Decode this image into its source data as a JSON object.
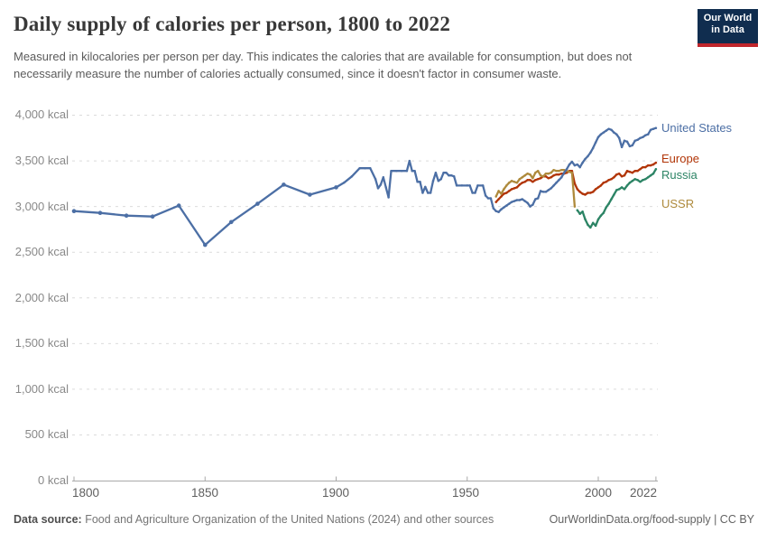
{
  "header": {
    "title": "Daily supply of calories per person, 1800 to 2022",
    "subtitle": "Measured in kilocalories per person per day. This indicates the calories that are available for consumption, but does not necessarily measure the number of calories actually consumed, since it doesn't factor in consumer waste.",
    "logo": {
      "line1": "Our World",
      "line2": "in Data",
      "bg_color": "#102D4F",
      "stripe_color": "#C0262C"
    }
  },
  "axis": {
    "y_labels": [
      "4,000 kcal",
      "3,500 kcal",
      "3,000 kcal",
      "2,500 kcal",
      "2,000 kcal",
      "1,500 kcal",
      "1,000 kcal",
      "500 kcal",
      "0 kcal"
    ],
    "x_labels": [
      "1800",
      "1850",
      "1900",
      "1950",
      "2000",
      "2022"
    ]
  },
  "footer": {
    "datasource_label": "Data source:",
    "datasource_text": " Food and Agriculture Organization of the United Nations (2024) and other sources",
    "link": "OurWorldinData.org/food-supply | CC BY"
  },
  "chart_data": {
    "type": "line",
    "title": "Daily supply of calories per person, 1800 to 2022",
    "unit": "kcal",
    "xlim": [
      1800,
      2022
    ],
    "ylim": [
      0,
      4000
    ],
    "x_ticks": [
      1800,
      1850,
      1900,
      1950,
      2000,
      2022
    ],
    "y_ticks": [
      0,
      500,
      1000,
      1500,
      2000,
      2500,
      3000,
      3500,
      4000
    ],
    "grid": "horizontal dashed",
    "legend_position": "right end-of-line labels",
    "colors": {
      "grid": "#DBDBDB",
      "axis": "#A9A9A9"
    },
    "series": [
      {
        "name": "Europe",
        "color": "#B13507",
        "points": [
          [
            1961,
            3050
          ],
          [
            1962,
            3080
          ],
          [
            1963,
            3110
          ],
          [
            1964,
            3140
          ],
          [
            1965,
            3150
          ],
          [
            1966,
            3170
          ],
          [
            1967,
            3190
          ],
          [
            1968,
            3200
          ],
          [
            1969,
            3210
          ],
          [
            1970,
            3240
          ],
          [
            1971,
            3260
          ],
          [
            1972,
            3270
          ],
          [
            1973,
            3290
          ],
          [
            1974,
            3290
          ],
          [
            1975,
            3270
          ],
          [
            1976,
            3290
          ],
          [
            1977,
            3300
          ],
          [
            1978,
            3310
          ],
          [
            1979,
            3330
          ],
          [
            1980,
            3330
          ],
          [
            1981,
            3310
          ],
          [
            1982,
            3320
          ],
          [
            1983,
            3340
          ],
          [
            1984,
            3350
          ],
          [
            1985,
            3350
          ],
          [
            1986,
            3360
          ],
          [
            1987,
            3360
          ],
          [
            1988,
            3370
          ],
          [
            1989,
            3390
          ],
          [
            1990,
            3390
          ],
          [
            1991,
            3250
          ],
          [
            1992,
            3190
          ],
          [
            1993,
            3160
          ],
          [
            1994,
            3140
          ],
          [
            1995,
            3130
          ],
          [
            1996,
            3150
          ],
          [
            1997,
            3150
          ],
          [
            1998,
            3160
          ],
          [
            1999,
            3190
          ],
          [
            2000,
            3210
          ],
          [
            2001,
            3230
          ],
          [
            2002,
            3260
          ],
          [
            2003,
            3270
          ],
          [
            2004,
            3290
          ],
          [
            2005,
            3300
          ],
          [
            2006,
            3320
          ],
          [
            2007,
            3350
          ],
          [
            2008,
            3360
          ],
          [
            2009,
            3330
          ],
          [
            2010,
            3340
          ],
          [
            2011,
            3390
          ],
          [
            2012,
            3380
          ],
          [
            2013,
            3370
          ],
          [
            2014,
            3390
          ],
          [
            2015,
            3390
          ],
          [
            2016,
            3410
          ],
          [
            2017,
            3430
          ],
          [
            2018,
            3430
          ],
          [
            2019,
            3450
          ],
          [
            2020,
            3450
          ],
          [
            2021,
            3460
          ],
          [
            2022,
            3480
          ]
        ]
      },
      {
        "name": "Russia",
        "color": "#2C8465",
        "points": [
          [
            1992,
            2960
          ],
          [
            1993,
            2920
          ],
          [
            1994,
            2945
          ],
          [
            1995,
            2860
          ],
          [
            1996,
            2800
          ],
          [
            1997,
            2770
          ],
          [
            1998,
            2820
          ],
          [
            1999,
            2790
          ],
          [
            2000,
            2860
          ],
          [
            2001,
            2900
          ],
          [
            2002,
            2930
          ],
          [
            2003,
            2990
          ],
          [
            2004,
            3030
          ],
          [
            2005,
            3080
          ],
          [
            2006,
            3130
          ],
          [
            2007,
            3180
          ],
          [
            2008,
            3190
          ],
          [
            2009,
            3210
          ],
          [
            2010,
            3190
          ],
          [
            2011,
            3230
          ],
          [
            2012,
            3260
          ],
          [
            2013,
            3280
          ],
          [
            2014,
            3300
          ],
          [
            2015,
            3290
          ],
          [
            2016,
            3270
          ],
          [
            2017,
            3290
          ],
          [
            2018,
            3300
          ],
          [
            2019,
            3320
          ],
          [
            2020,
            3340
          ],
          [
            2021,
            3360
          ],
          [
            2022,
            3410
          ]
        ]
      },
      {
        "name": "USSR",
        "color": "#AE8A3C",
        "points": [
          [
            1961,
            3110
          ],
          [
            1962,
            3170
          ],
          [
            1963,
            3140
          ],
          [
            1964,
            3190
          ],
          [
            1965,
            3230
          ],
          [
            1966,
            3260
          ],
          [
            1967,
            3280
          ],
          [
            1968,
            3270
          ],
          [
            1969,
            3260
          ],
          [
            1970,
            3300
          ],
          [
            1971,
            3320
          ],
          [
            1972,
            3340
          ],
          [
            1973,
            3360
          ],
          [
            1974,
            3350
          ],
          [
            1975,
            3310
          ],
          [
            1976,
            3370
          ],
          [
            1977,
            3390
          ],
          [
            1978,
            3340
          ],
          [
            1979,
            3330
          ],
          [
            1980,
            3360
          ],
          [
            1981,
            3360
          ],
          [
            1982,
            3370
          ],
          [
            1983,
            3400
          ],
          [
            1984,
            3390
          ],
          [
            1985,
            3390
          ],
          [
            1986,
            3400
          ],
          [
            1987,
            3400
          ],
          [
            1988,
            3390
          ],
          [
            1989,
            3380
          ],
          [
            1990,
            3370
          ],
          [
            1991,
            3000
          ]
        ]
      },
      {
        "name": "United States",
        "color": "#4C6FA5",
        "points": [
          [
            1800,
            2950
          ],
          [
            1810,
            2930
          ],
          [
            1820,
            2900
          ],
          [
            1830,
            2890
          ],
          [
            1840,
            3010
          ],
          [
            1850,
            2580
          ],
          [
            1860,
            2830
          ],
          [
            1870,
            3030
          ],
          [
            1880,
            3240
          ],
          [
            1890,
            3130
          ],
          [
            1900,
            3210
          ],
          [
            1903,
            3260
          ],
          [
            1906,
            3330
          ],
          [
            1909,
            3420
          ],
          [
            1911,
            3420
          ],
          [
            1913,
            3420
          ],
          [
            1915,
            3300
          ],
          [
            1916,
            3200
          ],
          [
            1917,
            3240
          ],
          [
            1918,
            3320
          ],
          [
            1919,
            3210
          ],
          [
            1920,
            3100
          ],
          [
            1921,
            3390
          ],
          [
            1923,
            3390
          ],
          [
            1925,
            3390
          ],
          [
            1927,
            3390
          ],
          [
            1928,
            3500
          ],
          [
            1929,
            3390
          ],
          [
            1930,
            3390
          ],
          [
            1931,
            3270
          ],
          [
            1932,
            3270
          ],
          [
            1933,
            3150
          ],
          [
            1934,
            3215
          ],
          [
            1935,
            3150
          ],
          [
            1936,
            3150
          ],
          [
            1937,
            3280
          ],
          [
            1938,
            3370
          ],
          [
            1939,
            3280
          ],
          [
            1940,
            3300
          ],
          [
            1941,
            3370
          ],
          [
            1942,
            3370
          ],
          [
            1943,
            3340
          ],
          [
            1944,
            3340
          ],
          [
            1945,
            3330
          ],
          [
            1946,
            3230
          ],
          [
            1948,
            3230
          ],
          [
            1950,
            3230
          ],
          [
            1951,
            3230
          ],
          [
            1952,
            3150
          ],
          [
            1953,
            3150
          ],
          [
            1954,
            3230
          ],
          [
            1956,
            3230
          ],
          [
            1957,
            3120
          ],
          [
            1958,
            3090
          ],
          [
            1959,
            3090
          ],
          [
            1960,
            2980
          ],
          [
            1961,
            2950
          ],
          [
            1962,
            2940
          ],
          [
            1963,
            2970
          ],
          [
            1964,
            2990
          ],
          [
            1965,
            3010
          ],
          [
            1966,
            3030
          ],
          [
            1967,
            3050
          ],
          [
            1968,
            3060
          ],
          [
            1969,
            3070
          ],
          [
            1970,
            3070
          ],
          [
            1971,
            3080
          ],
          [
            1972,
            3060
          ],
          [
            1973,
            3040
          ],
          [
            1974,
            3000
          ],
          [
            1975,
            3020
          ],
          [
            1976,
            3080
          ],
          [
            1977,
            3090
          ],
          [
            1978,
            3170
          ],
          [
            1979,
            3160
          ],
          [
            1980,
            3160
          ],
          [
            1981,
            3180
          ],
          [
            1982,
            3200
          ],
          [
            1983,
            3230
          ],
          [
            1984,
            3260
          ],
          [
            1985,
            3290
          ],
          [
            1986,
            3320
          ],
          [
            1987,
            3370
          ],
          [
            1988,
            3410
          ],
          [
            1989,
            3460
          ],
          [
            1990,
            3490
          ],
          [
            1991,
            3450
          ],
          [
            1992,
            3460
          ],
          [
            1993,
            3430
          ],
          [
            1994,
            3480
          ],
          [
            1995,
            3520
          ],
          [
            1996,
            3550
          ],
          [
            1997,
            3590
          ],
          [
            1998,
            3640
          ],
          [
            1999,
            3700
          ],
          [
            2000,
            3760
          ],
          [
            2001,
            3790
          ],
          [
            2002,
            3810
          ],
          [
            2003,
            3830
          ],
          [
            2004,
            3850
          ],
          [
            2005,
            3840
          ],
          [
            2006,
            3810
          ],
          [
            2007,
            3790
          ],
          [
            2008,
            3750
          ],
          [
            2009,
            3650
          ],
          [
            2010,
            3720
          ],
          [
            2011,
            3710
          ],
          [
            2012,
            3660
          ],
          [
            2013,
            3670
          ],
          [
            2014,
            3720
          ],
          [
            2015,
            3730
          ],
          [
            2016,
            3750
          ],
          [
            2017,
            3760
          ],
          [
            2018,
            3780
          ],
          [
            2019,
            3790
          ],
          [
            2020,
            3840
          ],
          [
            2021,
            3850
          ],
          [
            2022,
            3860
          ]
        ]
      }
    ]
  }
}
